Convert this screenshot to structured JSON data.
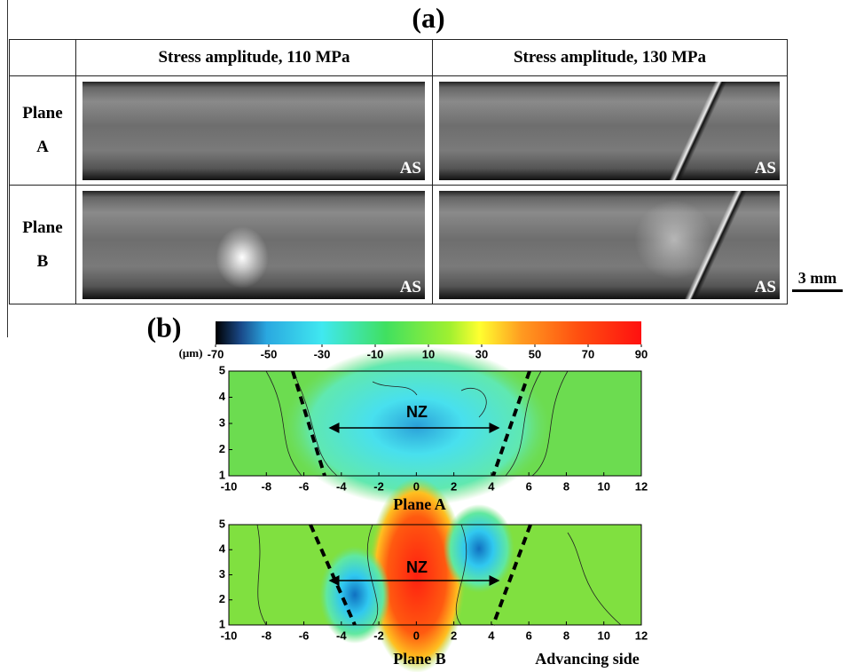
{
  "figure_a": {
    "label": "(a)",
    "columns": [
      "Stress amplitude, 110 MPa",
      "Stress amplitude, 130 MPa"
    ],
    "rows": [
      "Plane A",
      "Plane B"
    ],
    "image_label": "AS",
    "scale_bar": "3 mm"
  },
  "figure_b": {
    "label": "(b)",
    "colorbar": {
      "unit": "(μm)",
      "lim": [
        -70,
        90
      ],
      "ticks": [
        -70,
        -50,
        -30,
        -10,
        10,
        30,
        50,
        70,
        90
      ]
    },
    "xlim": [
      -10,
      12
    ],
    "xticks": [
      -10,
      -8,
      -6,
      -4,
      -2,
      0,
      2,
      4,
      6,
      8,
      10,
      12
    ],
    "ylim": [
      1,
      5
    ],
    "yticks": [
      1,
      2,
      3,
      4,
      5
    ],
    "zone_label": "NZ",
    "panels": [
      "Plane A",
      "Plane B"
    ],
    "side_label": "Advancing side"
  }
}
